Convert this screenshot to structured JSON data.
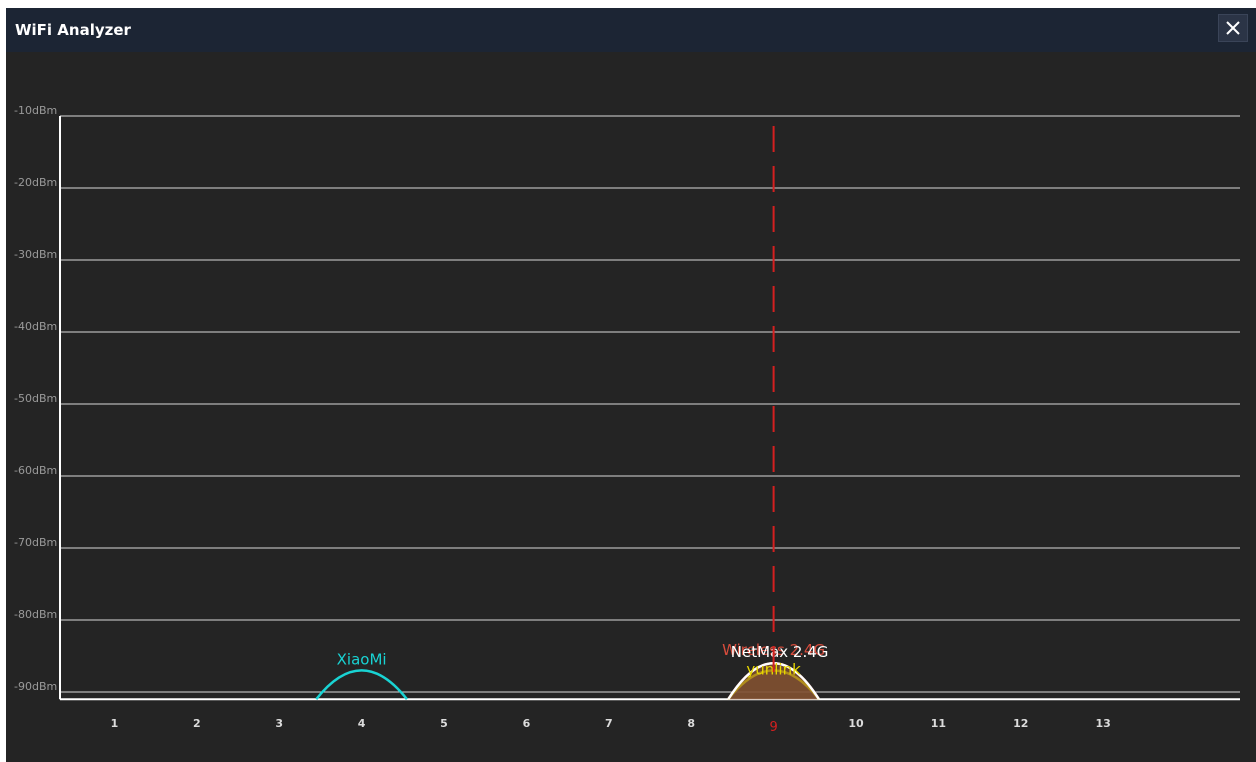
{
  "window": {
    "title": "WiFi Analyzer",
    "close_icon": "close-icon"
  },
  "colors": {
    "background": "#242424",
    "titlebar": "#1c2534",
    "grid": "#d9d9d9",
    "marker": "#d42020"
  },
  "chart_data": {
    "type": "area",
    "title": "",
    "xlabel": "",
    "ylabel": "",
    "y_unit": "dBm",
    "y_ticks": [
      "-10dBm",
      "-20dBm",
      "-30dBm",
      "-40dBm",
      "-50dBm",
      "-60dBm",
      "-70dBm",
      "-80dBm",
      "-90dBm"
    ],
    "ylim": [
      -91,
      -10
    ],
    "x_ticks": [
      "1",
      "2",
      "3",
      "4",
      "5",
      "6",
      "7",
      "8",
      "9",
      "10",
      "11",
      "12",
      "13"
    ],
    "xlim": [
      0,
      14.4
    ],
    "grid": true,
    "selected_channel": "9",
    "series": [
      {
        "name": "XiaoMi",
        "channel": 4,
        "signal_dbm": -87,
        "color": "#19d3d3",
        "fill": false
      },
      {
        "name": "Wireless 2.4G",
        "channel": 9,
        "signal_dbm": -86,
        "color": "#d84c3c",
        "fill": true
      },
      {
        "name": "yunlink",
        "channel": 9,
        "signal_dbm": -87,
        "color": "#e8d800",
        "fill": true
      },
      {
        "name": "NetMax 2.4G",
        "channel": 9,
        "signal_dbm": -86,
        "color": "#ffffff",
        "fill": true
      }
    ]
  }
}
